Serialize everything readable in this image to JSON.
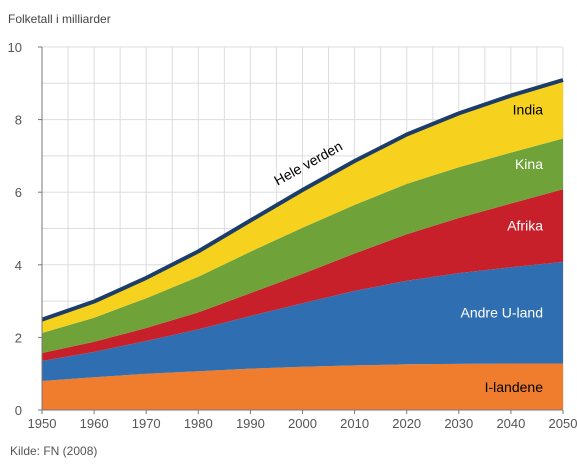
{
  "chart_data": {
    "type": "area",
    "stacked": true,
    "ylabel": "Folketall i milliarder",
    "source": "Kilde: FN (2008)",
    "x": [
      1950,
      1960,
      1970,
      1980,
      1990,
      2000,
      2010,
      2020,
      2030,
      2040,
      2050
    ],
    "xlim": [
      1950,
      2050
    ],
    "ylim": [
      0,
      10
    ],
    "yticks": [
      0,
      2,
      4,
      6,
      8,
      10
    ],
    "grid": true,
    "series": [
      {
        "name": "I-landene",
        "color": "#f07d2e",
        "label_color": "#000000",
        "values": [
          0.8,
          0.9,
          1.0,
          1.07,
          1.14,
          1.19,
          1.23,
          1.26,
          1.27,
          1.28,
          1.28
        ]
      },
      {
        "name": "Andre U-land",
        "color": "#2f6eb0",
        "label_color": "#ffffff",
        "values": [
          0.55,
          0.7,
          0.9,
          1.15,
          1.45,
          1.75,
          2.05,
          2.3,
          2.5,
          2.65,
          2.8
        ]
      },
      {
        "name": "Afrika",
        "color": "#c8202b",
        "label_color": "#ffffff",
        "values": [
          0.22,
          0.28,
          0.36,
          0.47,
          0.63,
          0.81,
          1.03,
          1.28,
          1.52,
          1.76,
          2.0
        ]
      },
      {
        "name": "Kina",
        "color": "#6fa33a",
        "label_color": "#ffffff",
        "values": [
          0.55,
          0.66,
          0.82,
          0.98,
          1.14,
          1.27,
          1.34,
          1.39,
          1.4,
          1.4,
          1.4
        ]
      },
      {
        "name": "India",
        "color": "#f6d21e",
        "label_color": "#000000",
        "values": [
          0.37,
          0.45,
          0.56,
          0.7,
          0.86,
          1.04,
          1.21,
          1.36,
          1.48,
          1.57,
          1.61
        ]
      }
    ],
    "total_label": "Hele verden",
    "total_line_color": "#1c3c6a"
  }
}
